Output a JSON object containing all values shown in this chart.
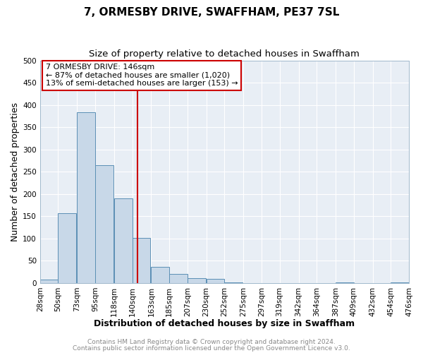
{
  "title": "7, ORMESBY DRIVE, SWAFFHAM, PE37 7SL",
  "subtitle": "Size of property relative to detached houses in Swaffham",
  "xlabel": "Distribution of detached houses by size in Swaffham",
  "ylabel": "Number of detached properties",
  "bar_left_edges": [
    28,
    50,
    73,
    95,
    118,
    140,
    163,
    185,
    207,
    230,
    252,
    275,
    297,
    319,
    342,
    364,
    387,
    409,
    432,
    454
  ],
  "bar_heights": [
    7,
    157,
    383,
    265,
    190,
    101,
    36,
    21,
    11,
    9,
    2,
    0,
    0,
    0,
    0,
    0,
    2,
    0,
    0,
    1
  ],
  "bin_width": 22,
  "tick_labels": [
    "28sqm",
    "50sqm",
    "73sqm",
    "95sqm",
    "118sqm",
    "140sqm",
    "163sqm",
    "185sqm",
    "207sqm",
    "230sqm",
    "252sqm",
    "275sqm",
    "297sqm",
    "319sqm",
    "342sqm",
    "364sqm",
    "387sqm",
    "409sqm",
    "432sqm",
    "454sqm",
    "476sqm"
  ],
  "bar_color": "#c8d8e8",
  "bar_edge_color": "#5b8fb5",
  "vline_x": 146,
  "vline_color": "#cc0000",
  "annotation_line1": "7 ORMESBY DRIVE: 146sqm",
  "annotation_line2": "← 87% of detached houses are smaller (1,020)",
  "annotation_line3": "13% of semi-detached houses are larger (153) →",
  "annotation_box_color": "#cc0000",
  "ylim": [
    0,
    500
  ],
  "yticks": [
    0,
    50,
    100,
    150,
    200,
    250,
    300,
    350,
    400,
    450,
    500
  ],
  "plot_bg_color": "#e8eef5",
  "fig_bg_color": "#ffffff",
  "footer_line1": "Contains HM Land Registry data © Crown copyright and database right 2024.",
  "footer_line2": "Contains public sector information licensed under the Open Government Licence v3.0.",
  "grid_color": "#ffffff",
  "title_fontsize": 11,
  "subtitle_fontsize": 9.5,
  "axis_label_fontsize": 9,
  "tick_fontsize": 7.5,
  "footer_fontsize": 6.5
}
